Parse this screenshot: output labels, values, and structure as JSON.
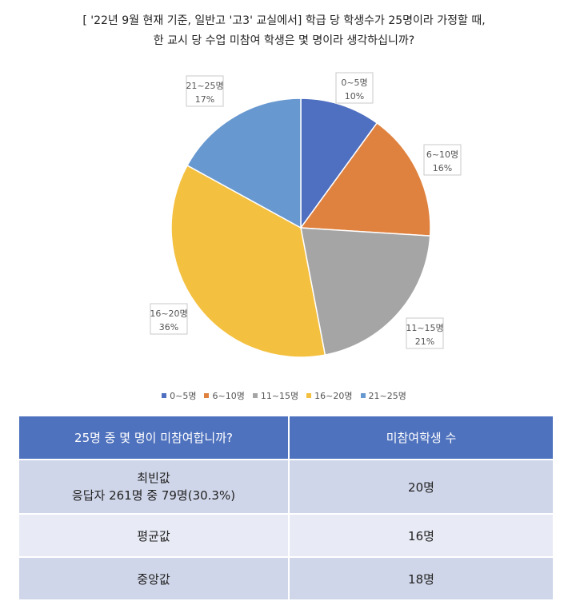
{
  "title": {
    "line1": "[ '22년 9월 현재 기준, 일반고 '고3' 교실에서] 학급 당 학생수가 25명이라 가정할 때,",
    "line2": "한 교시 당 수업 미참여 학생은 몇 명이라 생각하십니까?"
  },
  "chart_data": {
    "type": "pie",
    "title": "[ '22년 9월 현재 기준, 일반고 '고3' 교실에서] 학급 당 학생수가 25명이라 가정할 때, 한 교시 당 수업 미참여 학생은 몇 명이라 생각하십니까?",
    "categories": [
      "0~5명",
      "6~10명",
      "11~15명",
      "16~20명",
      "21~25명"
    ],
    "values": [
      10,
      16,
      21,
      36,
      17
    ],
    "labels": [
      "10%",
      "16%",
      "21%",
      "36%",
      "17%"
    ],
    "colors": [
      "#4f6fc0",
      "#e0823f",
      "#a5a5a5",
      "#f4c03f",
      "#6898d0"
    ],
    "legend": "bottom"
  },
  "table": {
    "headers": [
      "25명 중 몇 명이 미참여합니까?",
      "미참여학생 수"
    ],
    "rows": [
      {
        "label": "최빈값\n응답자 261명 중 79명(30.3%)",
        "value": "20명"
      },
      {
        "label": "평균값",
        "value": "16명"
      },
      {
        "label": "중앙값",
        "value": "18명"
      }
    ]
  }
}
